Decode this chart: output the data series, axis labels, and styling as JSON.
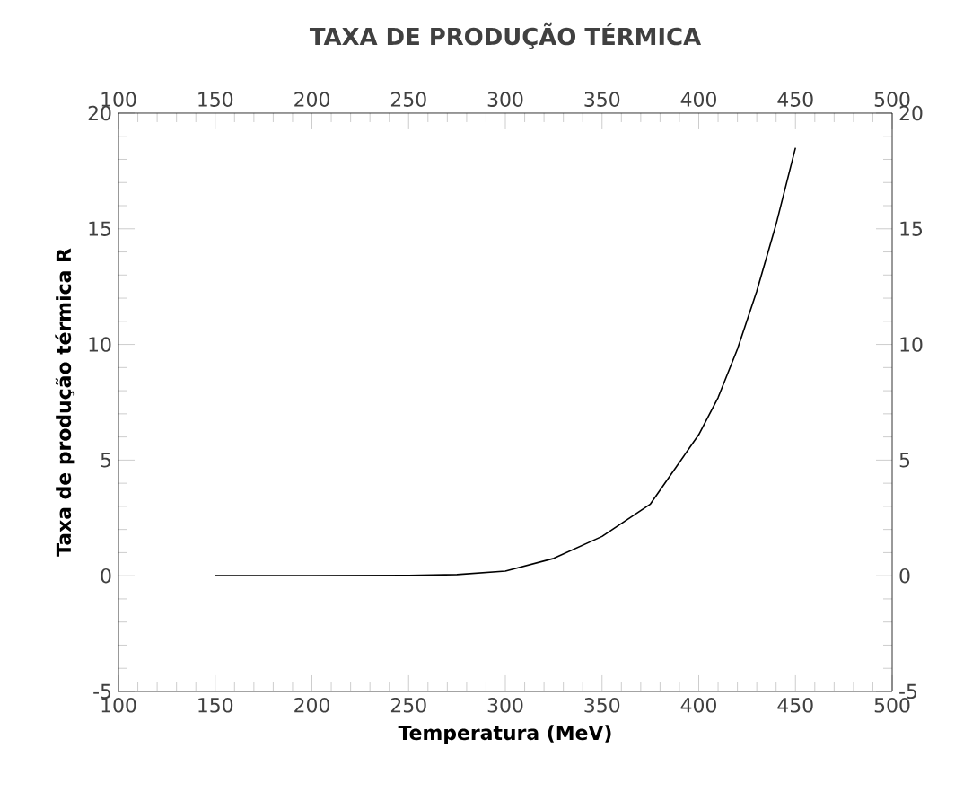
{
  "chart_data": {
    "type": "line",
    "title": "TAXA DE PRODUÇÃO TÉRMICA",
    "xlabel": "Temperatura (MeV)",
    "ylabel": "Taxa de produção térmica R",
    "x": [
      150,
      200,
      250,
      275,
      300,
      325,
      350,
      375,
      400,
      410,
      420,
      430,
      440,
      450
    ],
    "values": [
      0,
      0,
      0.01,
      0.05,
      0.2,
      0.75,
      1.7,
      3.1,
      6.1,
      7.7,
      9.8,
      12.3,
      15.2,
      18.5
    ],
    "color": "#000000",
    "xlim": [
      100,
      500
    ],
    "xticks": [
      100,
      150,
      200,
      250,
      300,
      350,
      400,
      450,
      500
    ],
    "ylim": [
      -5,
      20
    ],
    "yticks": [
      -5,
      0,
      5,
      10,
      15,
      20
    ],
    "x2lim": [
      100,
      500
    ],
    "x2ticks": [
      100,
      150,
      200,
      250,
      300,
      350,
      400,
      450,
      500
    ],
    "y2lim": [
      -5,
      20
    ],
    "y2ticks": [
      -5,
      0,
      5,
      10,
      15,
      20
    ]
  }
}
